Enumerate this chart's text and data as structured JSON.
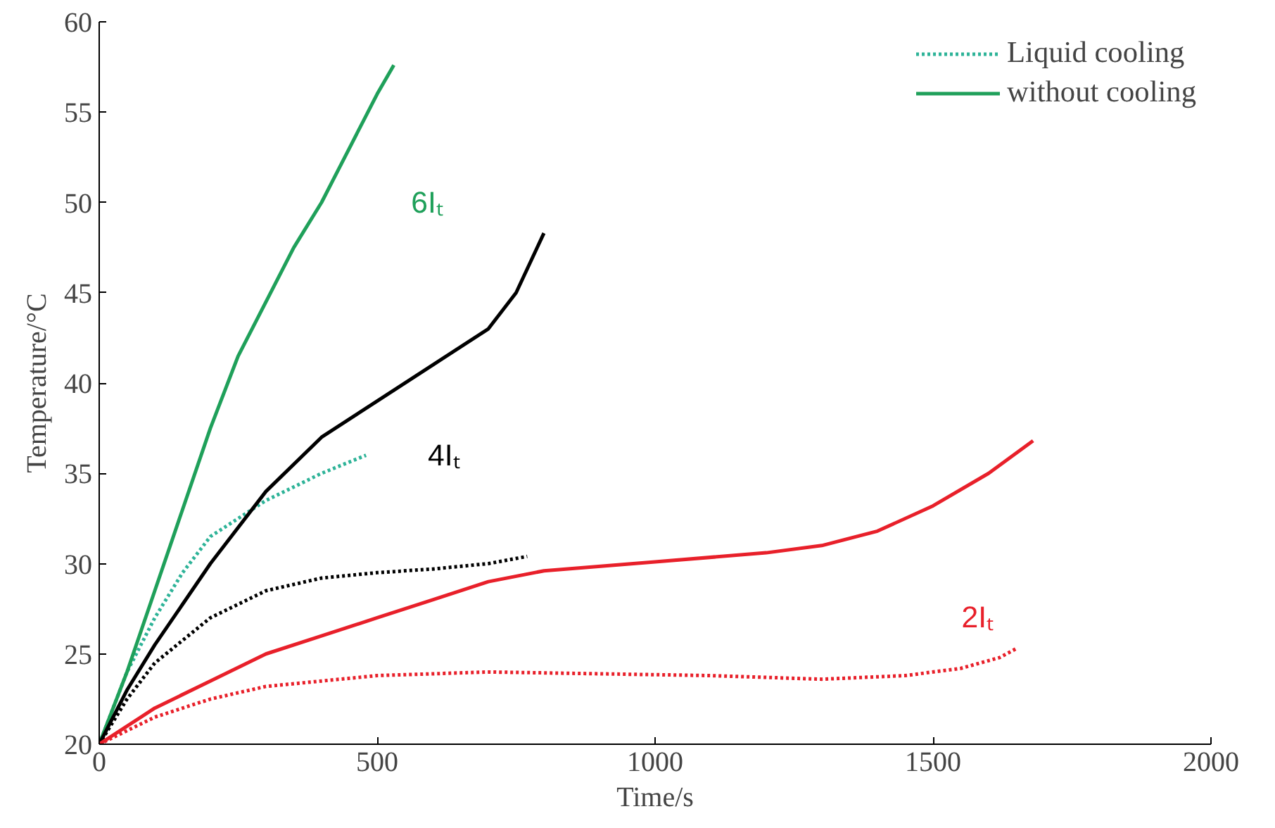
{
  "chart_data": {
    "type": "line",
    "xlabel": "Time/s",
    "ylabel": "Temperature/°C",
    "xlim": [
      0,
      2000
    ],
    "xticks": [
      0,
      500,
      1000,
      1500,
      2000
    ],
    "ylim": [
      20,
      60
    ],
    "yticks": [
      20,
      25,
      30,
      35,
      40,
      45,
      50,
      55,
      60
    ],
    "grid": false,
    "legend": "top right",
    "marker": "none",
    "series": [
      {
        "name": "Liquid cooling",
        "color": "#2eb398",
        "line_style": "dotted",
        "x": [
          0,
          50,
          100,
          150,
          200,
          300,
          400,
          480
        ],
        "values": [
          20,
          24,
          27,
          29.5,
          31.5,
          33.5,
          35,
          36
        ]
      },
      {
        "name": "without cooling",
        "color": "#1fa05a",
        "line_style": "solid",
        "x": [
          0,
          50,
          100,
          150,
          200,
          250,
          300,
          350,
          400,
          450,
          500,
          530
        ],
        "values": [
          20,
          24,
          28.5,
          33,
          37.5,
          41.5,
          44.5,
          47.5,
          50,
          53,
          56,
          57.6
        ]
      },
      {
        "color": "#000000",
        "line_style": "dotted",
        "x": [
          0,
          50,
          100,
          200,
          300,
          400,
          500,
          600,
          700,
          770
        ],
        "values": [
          20,
          22.5,
          24.5,
          27,
          28.5,
          29.2,
          29.5,
          29.7,
          30,
          30.4
        ]
      },
      {
        "color": "#000000",
        "line_style": "solid",
        "x": [
          0,
          50,
          100,
          200,
          300,
          400,
          500,
          600,
          700,
          750,
          800
        ],
        "values": [
          20,
          23,
          25.5,
          30,
          34,
          37,
          39,
          41,
          43,
          45,
          48.3
        ]
      },
      {
        "color": "#e8202a",
        "line_style": "dotted",
        "x": [
          0,
          100,
          200,
          300,
          500,
          700,
          900,
          1100,
          1300,
          1450,
          1550,
          1620,
          1650
        ],
        "values": [
          20,
          21.5,
          22.5,
          23.2,
          23.8,
          24,
          23.9,
          23.8,
          23.6,
          23.8,
          24.2,
          24.8,
          25.3
        ]
      },
      {
        "color": "#e8202a",
        "line_style": "solid",
        "x": [
          0,
          100,
          200,
          300,
          400,
          500,
          600,
          700,
          800,
          1000,
          1200,
          1300,
          1400,
          1500,
          1600,
          1680
        ],
        "values": [
          20,
          22,
          23.5,
          25,
          26,
          27,
          28,
          29,
          29.6,
          30.1,
          30.6,
          31,
          31.8,
          33.2,
          35,
          36.8
        ]
      }
    ],
    "annotations": [
      "6Iₜ",
      "4Iₜ",
      "2Iₜ"
    ]
  }
}
